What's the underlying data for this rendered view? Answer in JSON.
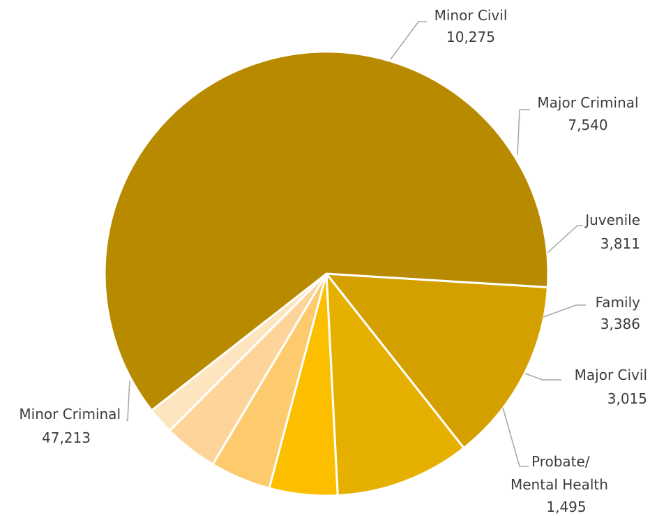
{
  "chart_data": {
    "type": "pie",
    "title": "",
    "start_angle_deg": 93.5,
    "direction": "clockwise",
    "slices": [
      {
        "label": "Minor Civil",
        "value": 10275,
        "value_label": "10,275",
        "color": "#d4a000"
      },
      {
        "label": "Major Criminal",
        "value": 7540,
        "value_label": "7,540",
        "color": "#e6b000"
      },
      {
        "label": "Juvenile",
        "value": 3811,
        "value_label": "3,811",
        "color": "#fbbf00"
      },
      {
        "label": "Family",
        "value": 3386,
        "value_label": "3,386",
        "color": "#fdca6e"
      },
      {
        "label": "Major Civil",
        "value": 3015,
        "value_label": "3,015",
        "color": "#fdd59a"
      },
      {
        "label": "Probate/ Mental Health",
        "value": 1495,
        "value_label": "1,495",
        "color": "#fde5c0"
      },
      {
        "label": "Minor Criminal",
        "value": 47213,
        "value_label": "47,213",
        "color": "#b88a00"
      }
    ],
    "legend": "none",
    "data_labels": "outside with leader lines"
  }
}
